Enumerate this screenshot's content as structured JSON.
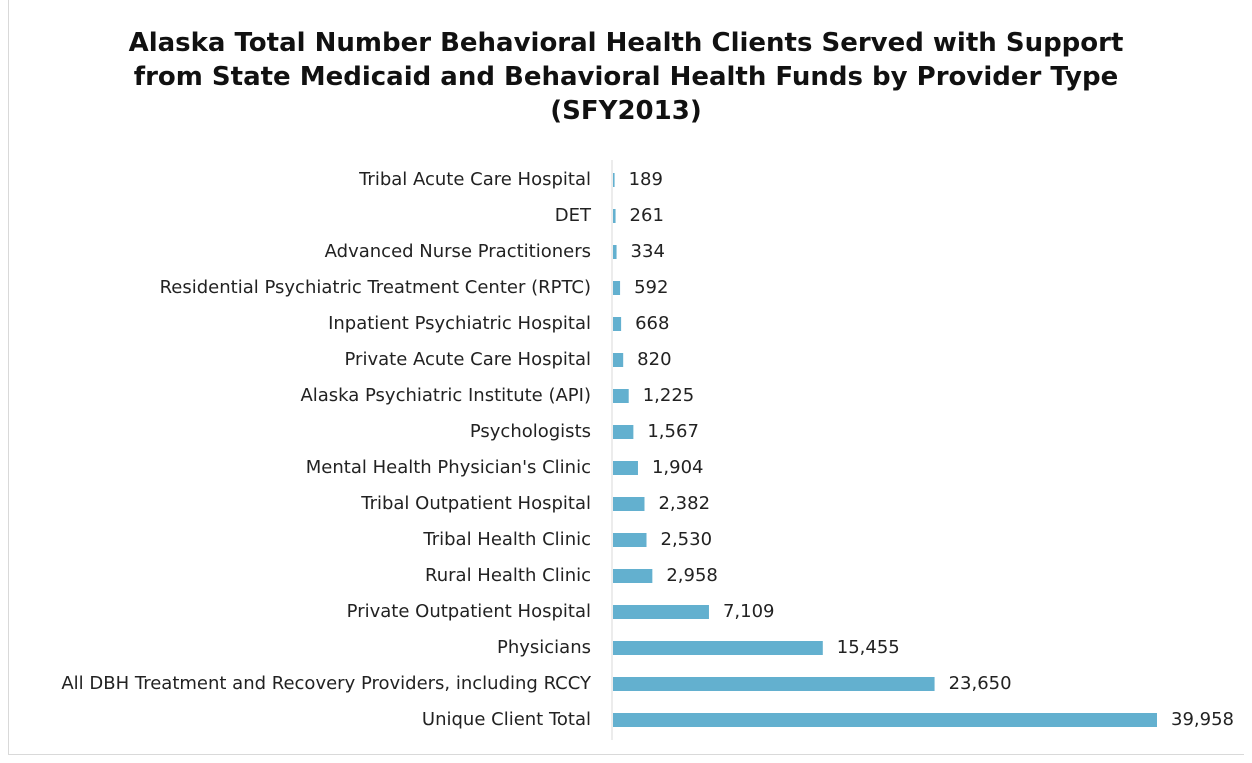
{
  "chart_data": {
    "type": "bar",
    "orientation": "horizontal",
    "title": "Alaska Total Number Behavioral Health Clients Served with Support from State Medicaid and Behavioral Health Funds by Provider Type (SFY2013)",
    "categories": [
      "Tribal Acute Care Hospital",
      "DET",
      "Advanced Nurse Practitioners",
      "Residential Psychiatric Treatment Center (RPTC)",
      "Inpatient Psychiatric Hospital",
      "Private Acute Care Hospital",
      "Alaska Psychiatric Institute (API)",
      "Psychologists",
      "Mental Health Physician's Clinic",
      "Tribal Outpatient Hospital",
      "Tribal Health Clinic",
      "Rural Health Clinic",
      "Private Outpatient Hospital",
      "Physicians",
      "All DBH Treatment and Recovery Providers, including RCCY",
      "Unique Client Total"
    ],
    "values": [
      189,
      261,
      334,
      592,
      668,
      820,
      1225,
      1567,
      1904,
      2382,
      2530,
      2958,
      7109,
      15455,
      23650,
      39958
    ],
    "value_labels": [
      "189",
      "261",
      "334",
      "592",
      "668",
      "820",
      "1,225",
      "1,567",
      "1,904",
      "2,382",
      "2,530",
      "2,958",
      "7,109",
      "15,455",
      "23,650",
      "39,958"
    ],
    "color": "#63b0cf"
  }
}
